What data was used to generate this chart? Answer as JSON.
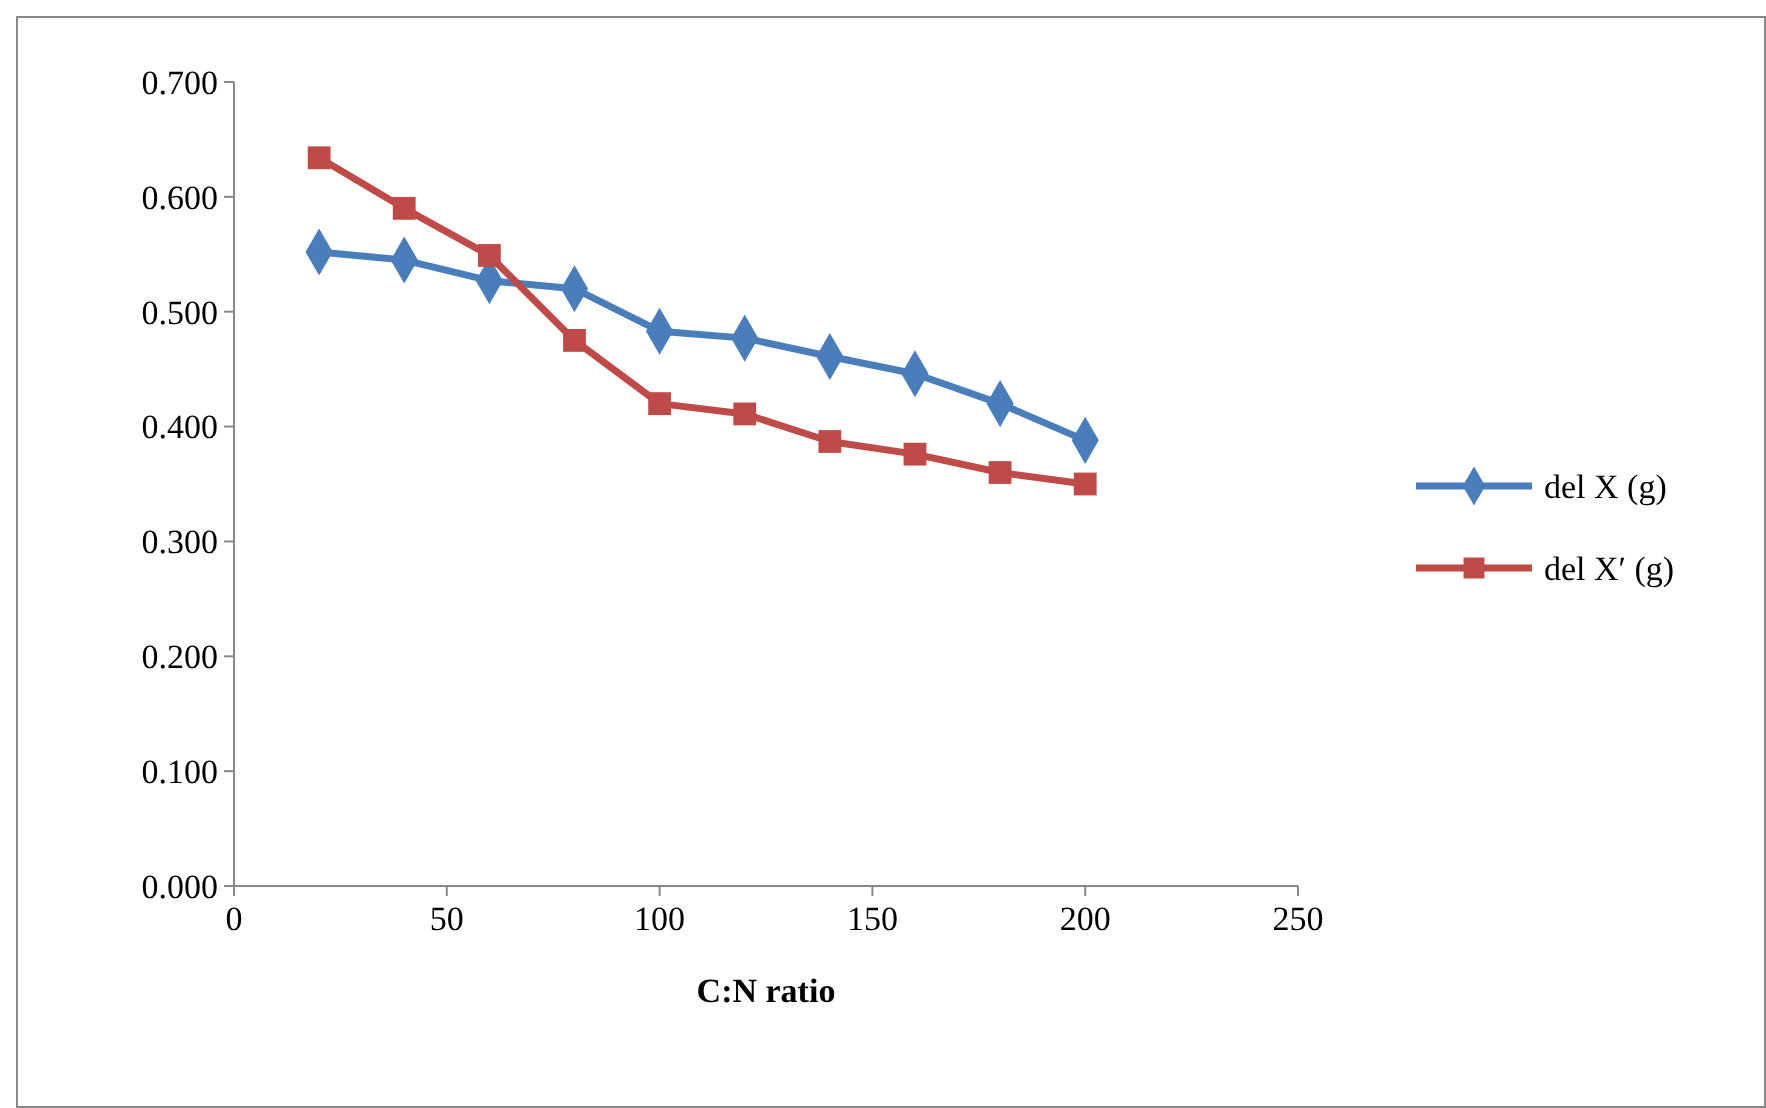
{
  "chart_data": {
    "type": "line",
    "xlabel": "C:N ratio",
    "x": [
      20,
      40,
      60,
      80,
      100,
      120,
      140,
      160,
      180,
      200
    ],
    "series": [
      {
        "name": "del X (g)",
        "color": "#4a7ebb",
        "marker": "diamond",
        "values": [
          0.552,
          0.545,
          0.527,
          0.52,
          0.483,
          0.477,
          0.461,
          0.446,
          0.42,
          0.388
        ]
      },
      {
        "name": "del X′ (g)",
        "color": "#be4b48",
        "marker": "square",
        "values": [
          0.634,
          0.59,
          0.549,
          0.475,
          0.42,
          0.411,
          0.387,
          0.376,
          0.36,
          0.35
        ]
      }
    ],
    "xlim": [
      0,
      250
    ],
    "xticks": [
      0,
      50,
      100,
      150,
      200,
      250
    ],
    "ylim": [
      0,
      0.7
    ],
    "yticks": [
      {
        "value": 0,
        "label": "0.000"
      },
      {
        "value": 0.1,
        "label": "0.100"
      },
      {
        "value": 0.2,
        "label": "0.200"
      },
      {
        "value": 0.3,
        "label": "0.300"
      },
      {
        "value": 0.4,
        "label": "0.400"
      },
      {
        "value": 0.5,
        "label": "0.500"
      },
      {
        "value": 0.6,
        "label": "0.600"
      },
      {
        "value": 0.7,
        "label": "0.700"
      }
    ],
    "grid": false,
    "legend": "right",
    "line_style": "solid"
  }
}
